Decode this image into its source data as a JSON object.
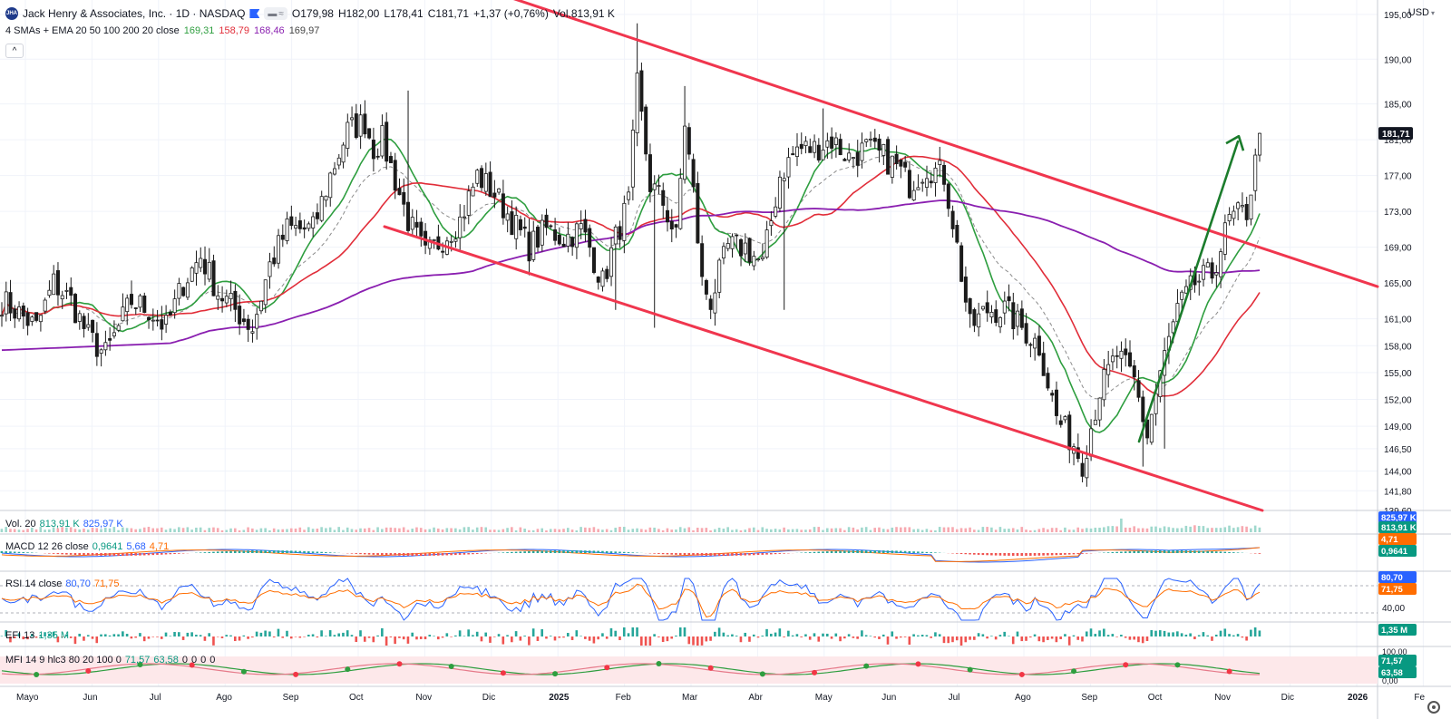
{
  "header": {
    "logo_text": "JHA",
    "title": "Jack Henry & Associates, Inc. · 1D · NASDAQ",
    "open": "O179,98",
    "high": "H182,00",
    "low": "L178,41",
    "close": "C181,71",
    "change": "+1,37 (+0,76%)",
    "volume": "Vol.813,91 K",
    "collapse_symbol": "^"
  },
  "ma_legend": {
    "label": "4 SMAs + EMA 20 50 100 200 20 close",
    "values": [
      "169,31",
      "158,79",
      "168,46",
      "169,97"
    ]
  },
  "currency": "USD",
  "colors": {
    "up": "#089981",
    "down": "#f23645",
    "candle": "#1b1b1b",
    "ma_green": "#2e9e3f",
    "ma_red": "#e12d39",
    "ma_purple": "#8a1fb0",
    "ma_dashed": "#8c8c8c",
    "trend_red": "#f0364e",
    "trend_green": "#1b7c2c",
    "blue": "#2962ff",
    "orange": "#ff6d00"
  },
  "price_axis": {
    "ticks": [
      "195,00",
      "190,00",
      "185,00",
      "181,00",
      "177,00",
      "173,00",
      "169,00",
      "165,00",
      "161,00",
      "158,00",
      "155,00",
      "152,00",
      "149,00",
      "146,50",
      "144,00",
      "141,80",
      "139,60"
    ],
    "current_label": "181,71"
  },
  "time_axis": [
    "Mayo",
    "Jun",
    "Jul",
    "Ago",
    "Sep",
    "Oct",
    "Nov",
    "Dic",
    "2025",
    "Feb",
    "Mar",
    "Abr",
    "May",
    "Jun",
    "Jul",
    "Ago",
    "Sep",
    "Oct",
    "Nov",
    "Dic",
    "2026",
    "Fe"
  ],
  "panes": {
    "volume": {
      "label": "Vol. 20",
      "v1": "813,91 K",
      "v2": "825,97 K",
      "badge_top": "825,97 K",
      "badge_bottom": "813,91 K"
    },
    "macd": {
      "label": "MACD 12 26 close",
      "v1": "0,9641",
      "v2": "5,68",
      "v3": "4,71",
      "badge_top": "4,71",
      "badge_bottom": "0,9641"
    },
    "rsi": {
      "label": "RSI 14 close",
      "v1": "80,70",
      "v2": "71,75",
      "badge_top": "80,70",
      "badge_mid": "71,75",
      "badge_bottom": "40,00"
    },
    "efi": {
      "label": "EFI 13",
      "v1": "1,35 M",
      "badge": "1,35 M"
    },
    "mfi": {
      "label": "MFI 14 9 hlc3 80 20 100 0",
      "v1": "71,57",
      "v2": "63,58",
      "v3": "0",
      "v4": "0",
      "v5": "0",
      "v6": "0",
      "badge_top": "100,00",
      "badge_mid": "71,57",
      "badge_low": "63,58",
      "badge_bottom": "0,00"
    }
  },
  "chart_data": {
    "type": "candlestick",
    "title": "Jack Henry & Associates, Inc. · 1D · NASDAQ",
    "ylim": [
      139.6,
      196
    ],
    "anchors": [
      [
        0,
        163
      ],
      [
        3,
        162
      ],
      [
        8,
        160
      ],
      [
        12,
        165
      ],
      [
        16,
        163
      ],
      [
        20,
        159
      ],
      [
        24,
        157
      ],
      [
        27,
        160
      ],
      [
        30,
        163
      ],
      [
        34,
        162
      ],
      [
        38,
        160
      ],
      [
        42,
        165
      ],
      [
        46,
        168
      ],
      [
        50,
        164
      ],
      [
        54,
        162
      ],
      [
        58,
        160
      ],
      [
        62,
        167
      ],
      [
        66,
        171
      ],
      [
        72,
        171
      ],
      [
        76,
        177
      ],
      [
        80,
        182
      ],
      [
        84,
        183
      ],
      [
        86,
        180
      ],
      [
        88,
        181
      ],
      [
        90,
        178
      ],
      [
        94,
        172
      ],
      [
        98,
        168
      ],
      [
        102,
        170
      ],
      [
        106,
        172
      ],
      [
        110,
        177
      ],
      [
        114,
        175
      ],
      [
        118,
        172
      ],
      [
        122,
        169
      ],
      [
        126,
        171
      ],
      [
        130,
        170
      ],
      [
        134,
        171
      ],
      [
        136,
        169
      ],
      [
        139,
        165
      ],
      [
        142,
        170
      ],
      [
        145,
        174
      ],
      [
        147,
        187
      ],
      [
        150,
        176
      ],
      [
        153,
        174
      ],
      [
        156,
        170
      ],
      [
        158,
        183
      ],
      [
        160,
        175
      ],
      [
        162,
        165
      ],
      [
        164,
        163
      ],
      [
        168,
        169
      ],
      [
        172,
        169
      ],
      [
        176,
        167
      ],
      [
        180,
        177
      ],
      [
        184,
        180
      ],
      [
        188,
        180
      ],
      [
        192,
        181
      ],
      [
        196,
        179
      ],
      [
        200,
        180
      ],
      [
        204,
        179
      ],
      [
        207,
        178
      ],
      [
        210,
        176
      ],
      [
        214,
        178
      ],
      [
        218,
        177
      ],
      [
        220,
        172
      ],
      [
        224,
        160
      ],
      [
        228,
        162
      ],
      [
        232,
        162
      ],
      [
        236,
        160
      ],
      [
        240,
        158
      ],
      [
        244,
        150
      ],
      [
        248,
        147
      ],
      [
        250,
        145
      ],
      [
        254,
        153
      ],
      [
        258,
        157
      ],
      [
        262,
        154
      ],
      [
        265,
        148
      ],
      [
        268,
        155
      ],
      [
        272,
        162
      ],
      [
        276,
        165
      ],
      [
        280,
        166
      ],
      [
        284,
        172
      ],
      [
        288,
        173
      ],
      [
        291,
        181
      ]
    ]
  }
}
